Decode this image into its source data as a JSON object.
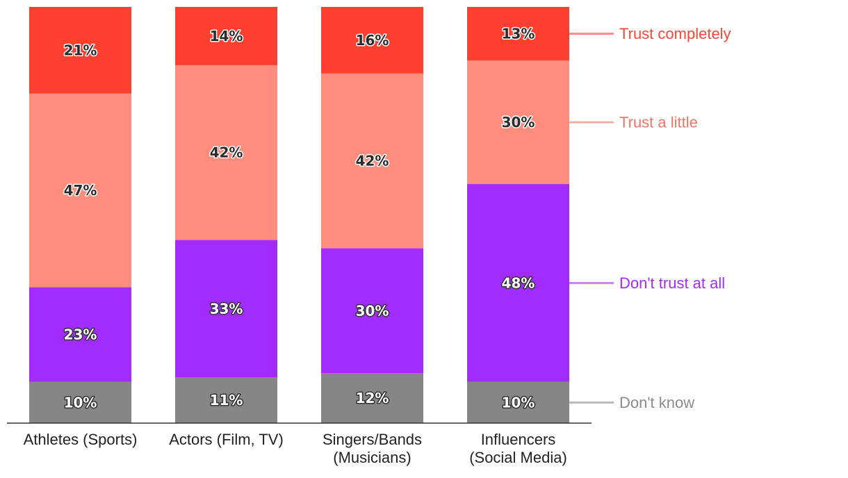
{
  "chart_data": {
    "type": "bar",
    "stacked": true,
    "title": "",
    "xlabel": "",
    "ylabel": "",
    "ylim": [
      0,
      100
    ],
    "value_suffix": "%",
    "categories": [
      [
        "Athletes (Sports)"
      ],
      [
        "Actors (Film, TV)"
      ],
      [
        "Singers/Bands",
        "(Musicians)"
      ],
      [
        "Influencers",
        "(Social Media)"
      ]
    ],
    "series": [
      {
        "name": "Don't know",
        "color": "#868686",
        "legend_color": "#8a8a8a",
        "values": [
          10,
          11,
          12,
          10
        ]
      },
      {
        "name": "Don't trust at all",
        "color": "#a22cff",
        "legend_color": "#a22cff",
        "values": [
          23,
          33,
          30,
          48
        ]
      },
      {
        "name": "Trust a little",
        "color": "#ff8d7e",
        "legend_color": "#e8766a",
        "values": [
          47,
          42,
          42,
          30
        ]
      },
      {
        "name": "Trust completely",
        "color": "#ff3f2f",
        "legend_color": "#f2473a",
        "values": [
          21,
          14,
          16,
          13
        ]
      }
    ]
  }
}
